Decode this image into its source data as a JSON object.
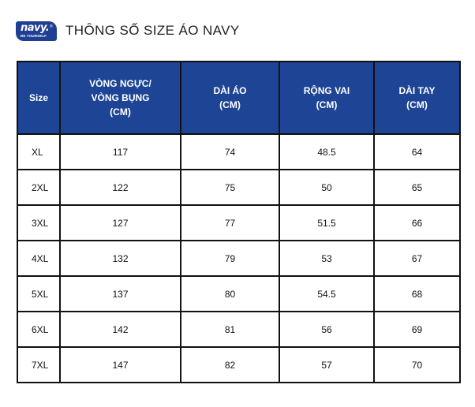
{
  "header": {
    "logo": {
      "main_text": "navy.",
      "sub_text": "BE YOURSELF",
      "registered_mark": "®"
    },
    "title": "THÔNG SỐ SIZE ÁO NAVY"
  },
  "table": {
    "columns": [
      {
        "lines": [
          "Size"
        ]
      },
      {
        "lines": [
          "VÒNG NGỰC/",
          "VÒNG BỤNG",
          "(CM)"
        ]
      },
      {
        "lines": [
          "DÀI ÁO",
          "(CM)"
        ]
      },
      {
        "lines": [
          "RỘNG VAI",
          "(CM)"
        ]
      },
      {
        "lines": [
          "DÀI TAY",
          "(CM)"
        ]
      }
    ],
    "rows": [
      [
        "XL",
        "117",
        "74",
        "48.5",
        "64"
      ],
      [
        "2XL",
        "122",
        "75",
        "50",
        "65"
      ],
      [
        "3XL",
        "127",
        "77",
        "51.5",
        "66"
      ],
      [
        "4XL",
        "132",
        "79",
        "53",
        "67"
      ],
      [
        "5XL",
        "137",
        "80",
        "54.5",
        "68"
      ],
      [
        "6XL",
        "142",
        "81",
        "56",
        "69"
      ],
      [
        "7XL",
        "147",
        "82",
        "57",
        "70"
      ]
    ]
  },
  "colors": {
    "header_fill": "#1e4595",
    "logo_fill": "#1f3f93",
    "border": "#111111"
  }
}
